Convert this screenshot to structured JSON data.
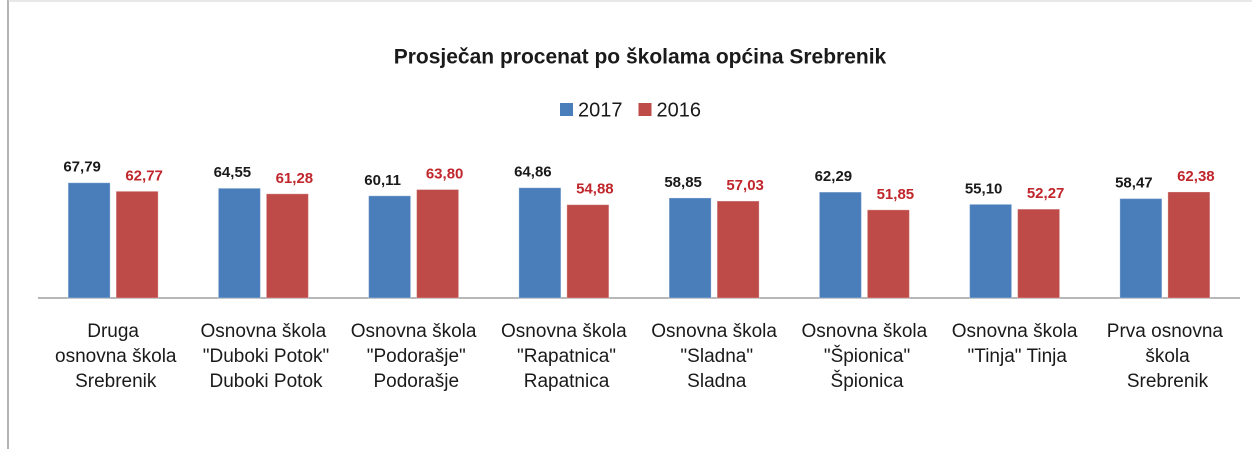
{
  "chart_data": {
    "type": "bar",
    "title": "Prosječan procenat po školama općina Srebrenik",
    "categories": [
      "Druga osnovna škola Srebrenik",
      "Osnovna škola \"Duboki Potok\" Duboki Potok",
      "Osnovna škola \"Podorašje\" Podorašje",
      "Osnovna škola \"Rapatnica\" Rapatnica",
      "Osnovna škola \"Sladna\" Sladna",
      "Osnovna škola \"Špionica\" Špionica",
      "Osnovna škola \"Tinja\" Tinja",
      "Prva osnovna škola Srebrenik"
    ],
    "series": [
      {
        "name": "2017",
        "color": "#4a7ebb",
        "label_color": "#1a1a1a",
        "values": [
          67.79,
          64.55,
          60.11,
          64.86,
          58.85,
          62.29,
          55.1,
          58.47
        ],
        "value_labels": [
          "67,79",
          "64,55",
          "60,11",
          "64,86",
          "58,85",
          "62,29",
          "55,10",
          "58,47"
        ]
      },
      {
        "name": "2016",
        "color": "#be4b48",
        "label_color": "#c0262b",
        "values": [
          62.77,
          61.28,
          63.8,
          54.88,
          57.03,
          51.85,
          52.27,
          62.38
        ],
        "value_labels": [
          "62,77",
          "61,28",
          "63,80",
          "54,88",
          "57,03",
          "51,85",
          "52,27",
          "62,38"
        ]
      }
    ],
    "ylim": [
      0,
      80
    ],
    "legend": "top"
  }
}
